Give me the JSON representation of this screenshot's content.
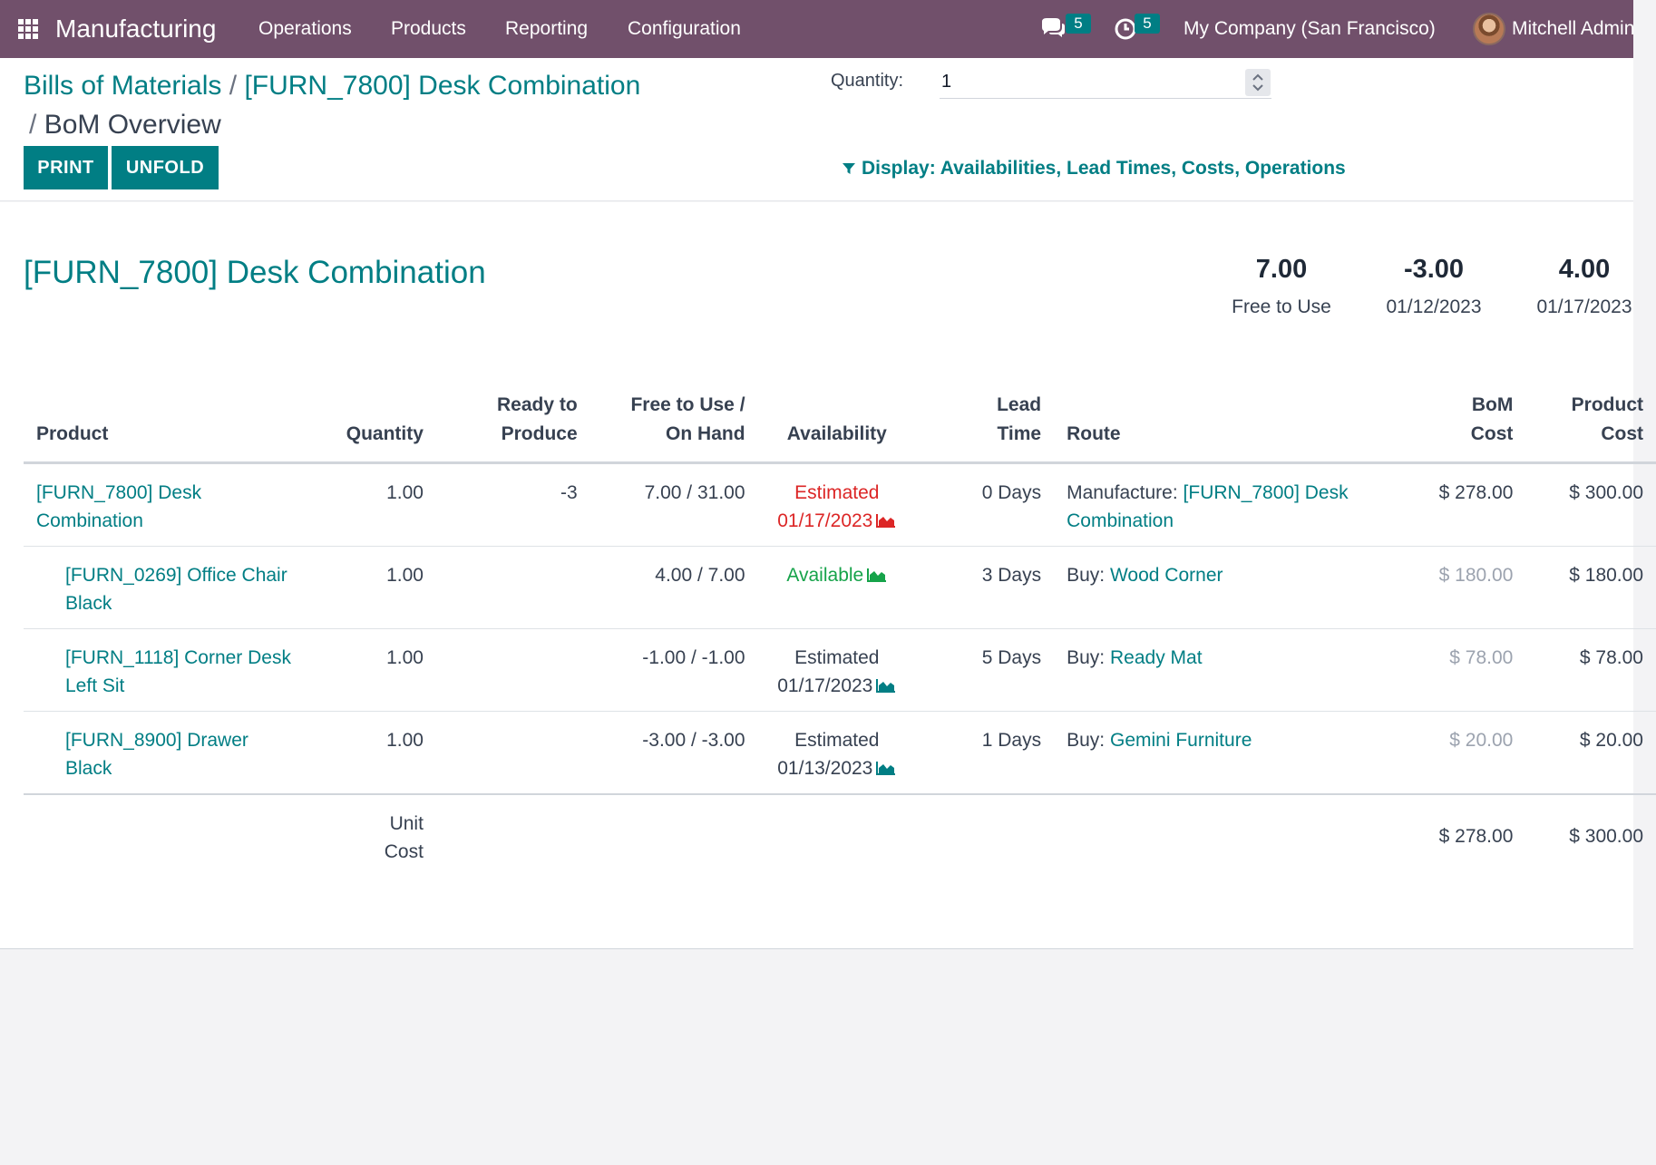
{
  "navbar": {
    "app_name": "Manufacturing",
    "menu": [
      "Operations",
      "Products",
      "Reporting",
      "Configuration"
    ],
    "messages_count": "5",
    "activities_count": "5",
    "company": "My Company (San Francisco)",
    "user": "Mitchell Admin"
  },
  "breadcrumb": {
    "item1": "Bills of Materials",
    "sep": "/",
    "item2": "[FURN_7800] Desk Combination",
    "current": "BoM Overview"
  },
  "buttons": {
    "print": "PRINT",
    "unfold": "UNFOLD"
  },
  "quantity": {
    "label": "Quantity:",
    "value": "1"
  },
  "display_filter": "Display: Availabilities, Lead Times, Costs, Operations",
  "product_title": "[FURN_7800] Desk Combination",
  "summary": [
    {
      "value": "7.00",
      "label": "Free to Use"
    },
    {
      "value": "-3.00",
      "label": "01/12/2023"
    },
    {
      "value": "4.00",
      "label": "01/17/2023"
    }
  ],
  "table": {
    "headers": {
      "product": "Product",
      "quantity": "Quantity",
      "ready_l1": "Ready to",
      "ready_l2": "Produce",
      "free_l1": "Free to Use /",
      "free_l2": "On Hand",
      "availability": "Availability",
      "lead_l1": "Lead",
      "lead_l2": "Time",
      "route": "Route",
      "bom_l1": "BoM",
      "bom_l2": "Cost",
      "prod_l1": "Product",
      "prod_l2": "Cost"
    },
    "rows": [
      {
        "product": "[FURN_7800] Desk Combination",
        "quantity": "1.00",
        "ready": "-3",
        "free_onhand": "7.00 / 31.00",
        "avail_l1": "Estimated",
        "avail_l2": "01/17/2023",
        "lead": "0 Days",
        "route_type": "Manufacture:",
        "route_target": "[FURN_7800] Desk Combination",
        "bom_cost": "$ 278.00",
        "product_cost": "$ 300.00"
      },
      {
        "product": "[FURN_0269] Office Chair Black",
        "quantity": "1.00",
        "ready": "",
        "free_onhand": "4.00 / 7.00",
        "avail_l1": "Available",
        "avail_l2": "",
        "lead": "3 Days",
        "route_type": "Buy:",
        "route_target": "Wood Corner",
        "bom_cost": "$ 180.00",
        "product_cost": "$ 180.00"
      },
      {
        "product": "[FURN_1118] Corner Desk Left Sit",
        "quantity": "1.00",
        "ready": "",
        "free_onhand": "-1.00 / -1.00",
        "avail_l1": "Estimated",
        "avail_l2": "01/17/2023",
        "lead": "5 Days",
        "route_type": "Buy:",
        "route_target": "Ready Mat",
        "bom_cost": "$ 78.00",
        "product_cost": "$ 78.00"
      },
      {
        "product": "[FURN_8900] Drawer Black",
        "quantity": "1.00",
        "ready": "",
        "free_onhand": "-3.00 / -3.00",
        "avail_l1": "Estimated",
        "avail_l2": "01/13/2023",
        "lead": "1 Days",
        "route_type": "Buy:",
        "route_target": "Gemini Furniture",
        "bom_cost": "$ 20.00",
        "product_cost": "$ 20.00"
      }
    ],
    "total": {
      "label_l1": "Unit",
      "label_l2": "Cost",
      "bom_cost": "$ 278.00",
      "product_cost": "$ 300.00"
    }
  },
  "colors": {
    "navbar": "#71506b",
    "accent": "#017e84",
    "late": "#dc2626",
    "available": "#16a34a"
  },
  "icons": [
    "apps-grid-icon",
    "chat-icon",
    "activity-clock-icon",
    "funnel-icon",
    "area-chart-icon",
    "chevron-up-icon",
    "chevron-down-icon"
  ]
}
